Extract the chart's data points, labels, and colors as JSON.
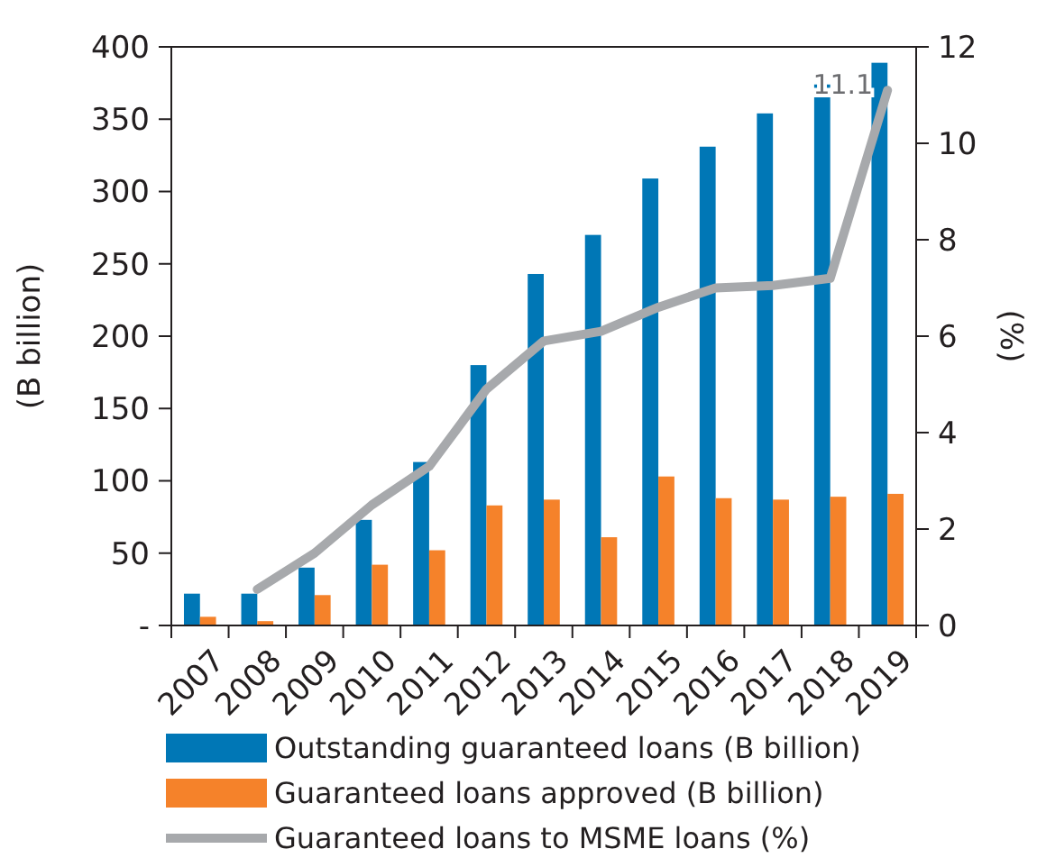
{
  "chart_data": {
    "type": "bar",
    "categories": [
      "2007",
      "2008",
      "2009",
      "2010",
      "2011",
      "2012",
      "2013",
      "2014",
      "2015",
      "2016",
      "2017",
      "2018",
      "2019"
    ],
    "series": [
      {
        "name": "Outstanding guaranteed loans (B billion)",
        "color": "#0077b6",
        "values": [
          22,
          22,
          40,
          73,
          113,
          180,
          243,
          270,
          309,
          331,
          354,
          374,
          389
        ]
      },
      {
        "name": "Guaranteed loans approved (B billion)",
        "color": "#f5822a",
        "values": [
          6,
          3,
          21,
          42,
          52,
          83,
          87,
          61,
          103,
          88,
          87,
          89,
          91
        ]
      },
      {
        "name": "Guaranteed loans to MSME loans (%)",
        "type": "line",
        "axis": "y2",
        "color": "#a7a9ac",
        "values": [
          null,
          0.75,
          1.5,
          2.5,
          3.3,
          4.9,
          5.9,
          6.1,
          6.6,
          7.0,
          7.05,
          7.2,
          11.1
        ],
        "value_labels": [
          null,
          null,
          null,
          null,
          null,
          null,
          null,
          null,
          null,
          null,
          null,
          null,
          "11.1"
        ]
      }
    ],
    "ylabel": "(B billion)",
    "y2label": "(%)",
    "ylim": [
      0,
      400
    ],
    "yticks": [
      {
        "value": 0,
        "label": "-"
      },
      50,
      100,
      150,
      200,
      250,
      300,
      350,
      400
    ],
    "y2lim": [
      0,
      12
    ],
    "y2ticks": [
      0,
      2,
      4,
      6,
      8,
      10,
      12
    ],
    "grid": false,
    "legend": "bottom",
    "marker": "none",
    "line_style": "solid"
  }
}
